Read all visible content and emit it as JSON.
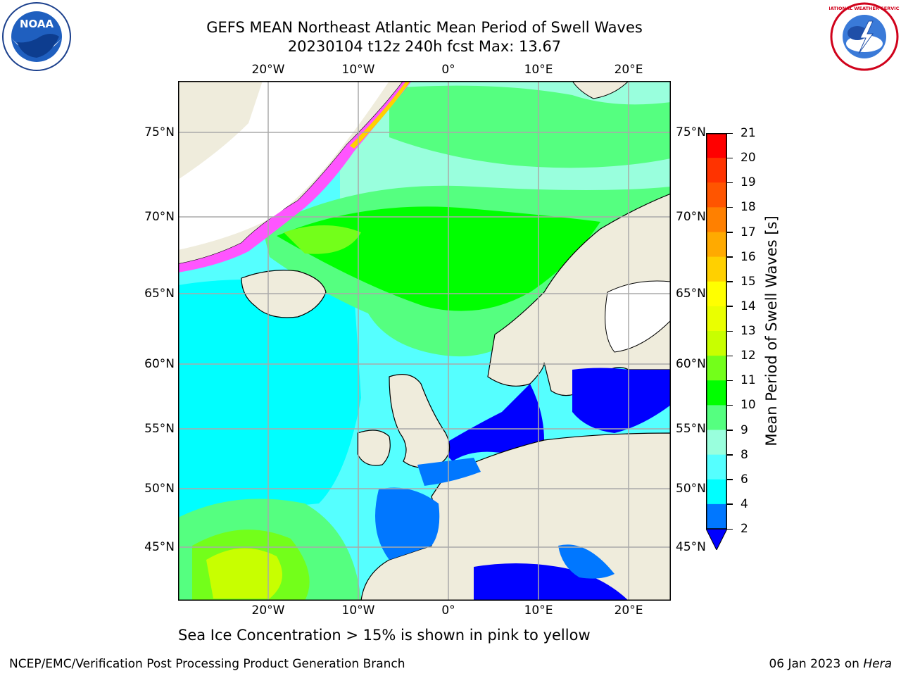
{
  "title": {
    "line1": "GEFS MEAN Northeast Atlantic Mean Period of Swell Waves",
    "line2": "20230104 t12z 240h fcst   Max: 13.67"
  },
  "map": {
    "lon_labels": [
      "20°W",
      "10°W",
      "0°",
      "10°E",
      "20°E"
    ],
    "lat_labels": [
      "75°N",
      "70°N",
      "65°N",
      "60°N",
      "55°N",
      "50°N",
      "45°N"
    ],
    "land_color": "#efecdc",
    "ocean_low_color": "#00ffff",
    "ocean_mid_color": "#55ff80",
    "sea_ice_color": "#ff55ff"
  },
  "colorbar": {
    "label": "Mean Period of Swell Waves [s]",
    "ticks": [
      "21",
      "20",
      "19",
      "18",
      "17",
      "16",
      "15",
      "14",
      "13",
      "12",
      "11",
      "10",
      "9",
      "8",
      "6",
      "4",
      "2"
    ],
    "colors": [
      "#ff0000",
      "#ff3300",
      "#ff5500",
      "#ff8000",
      "#ffaa00",
      "#ffd000",
      "#ffff00",
      "#eaff00",
      "#c8ff00",
      "#73ff1a",
      "#00ff00",
      "#55ff80",
      "#99ffdd",
      "#55ffff",
      "#00ffff",
      "#0077ff",
      "#0000ff"
    ],
    "extend": "min"
  },
  "notes": {
    "ice": "Sea Ice Concentration > 15% is shown in pink to yellow"
  },
  "footer": {
    "left": "NCEP/EMC/Verification Post Processing Product Generation Branch",
    "date": "06 Jan 2023 on ",
    "host": "Hera"
  },
  "logos": {
    "noaa": "NOAA",
    "nws": "NATIONAL WEATHER SERVICE"
  }
}
